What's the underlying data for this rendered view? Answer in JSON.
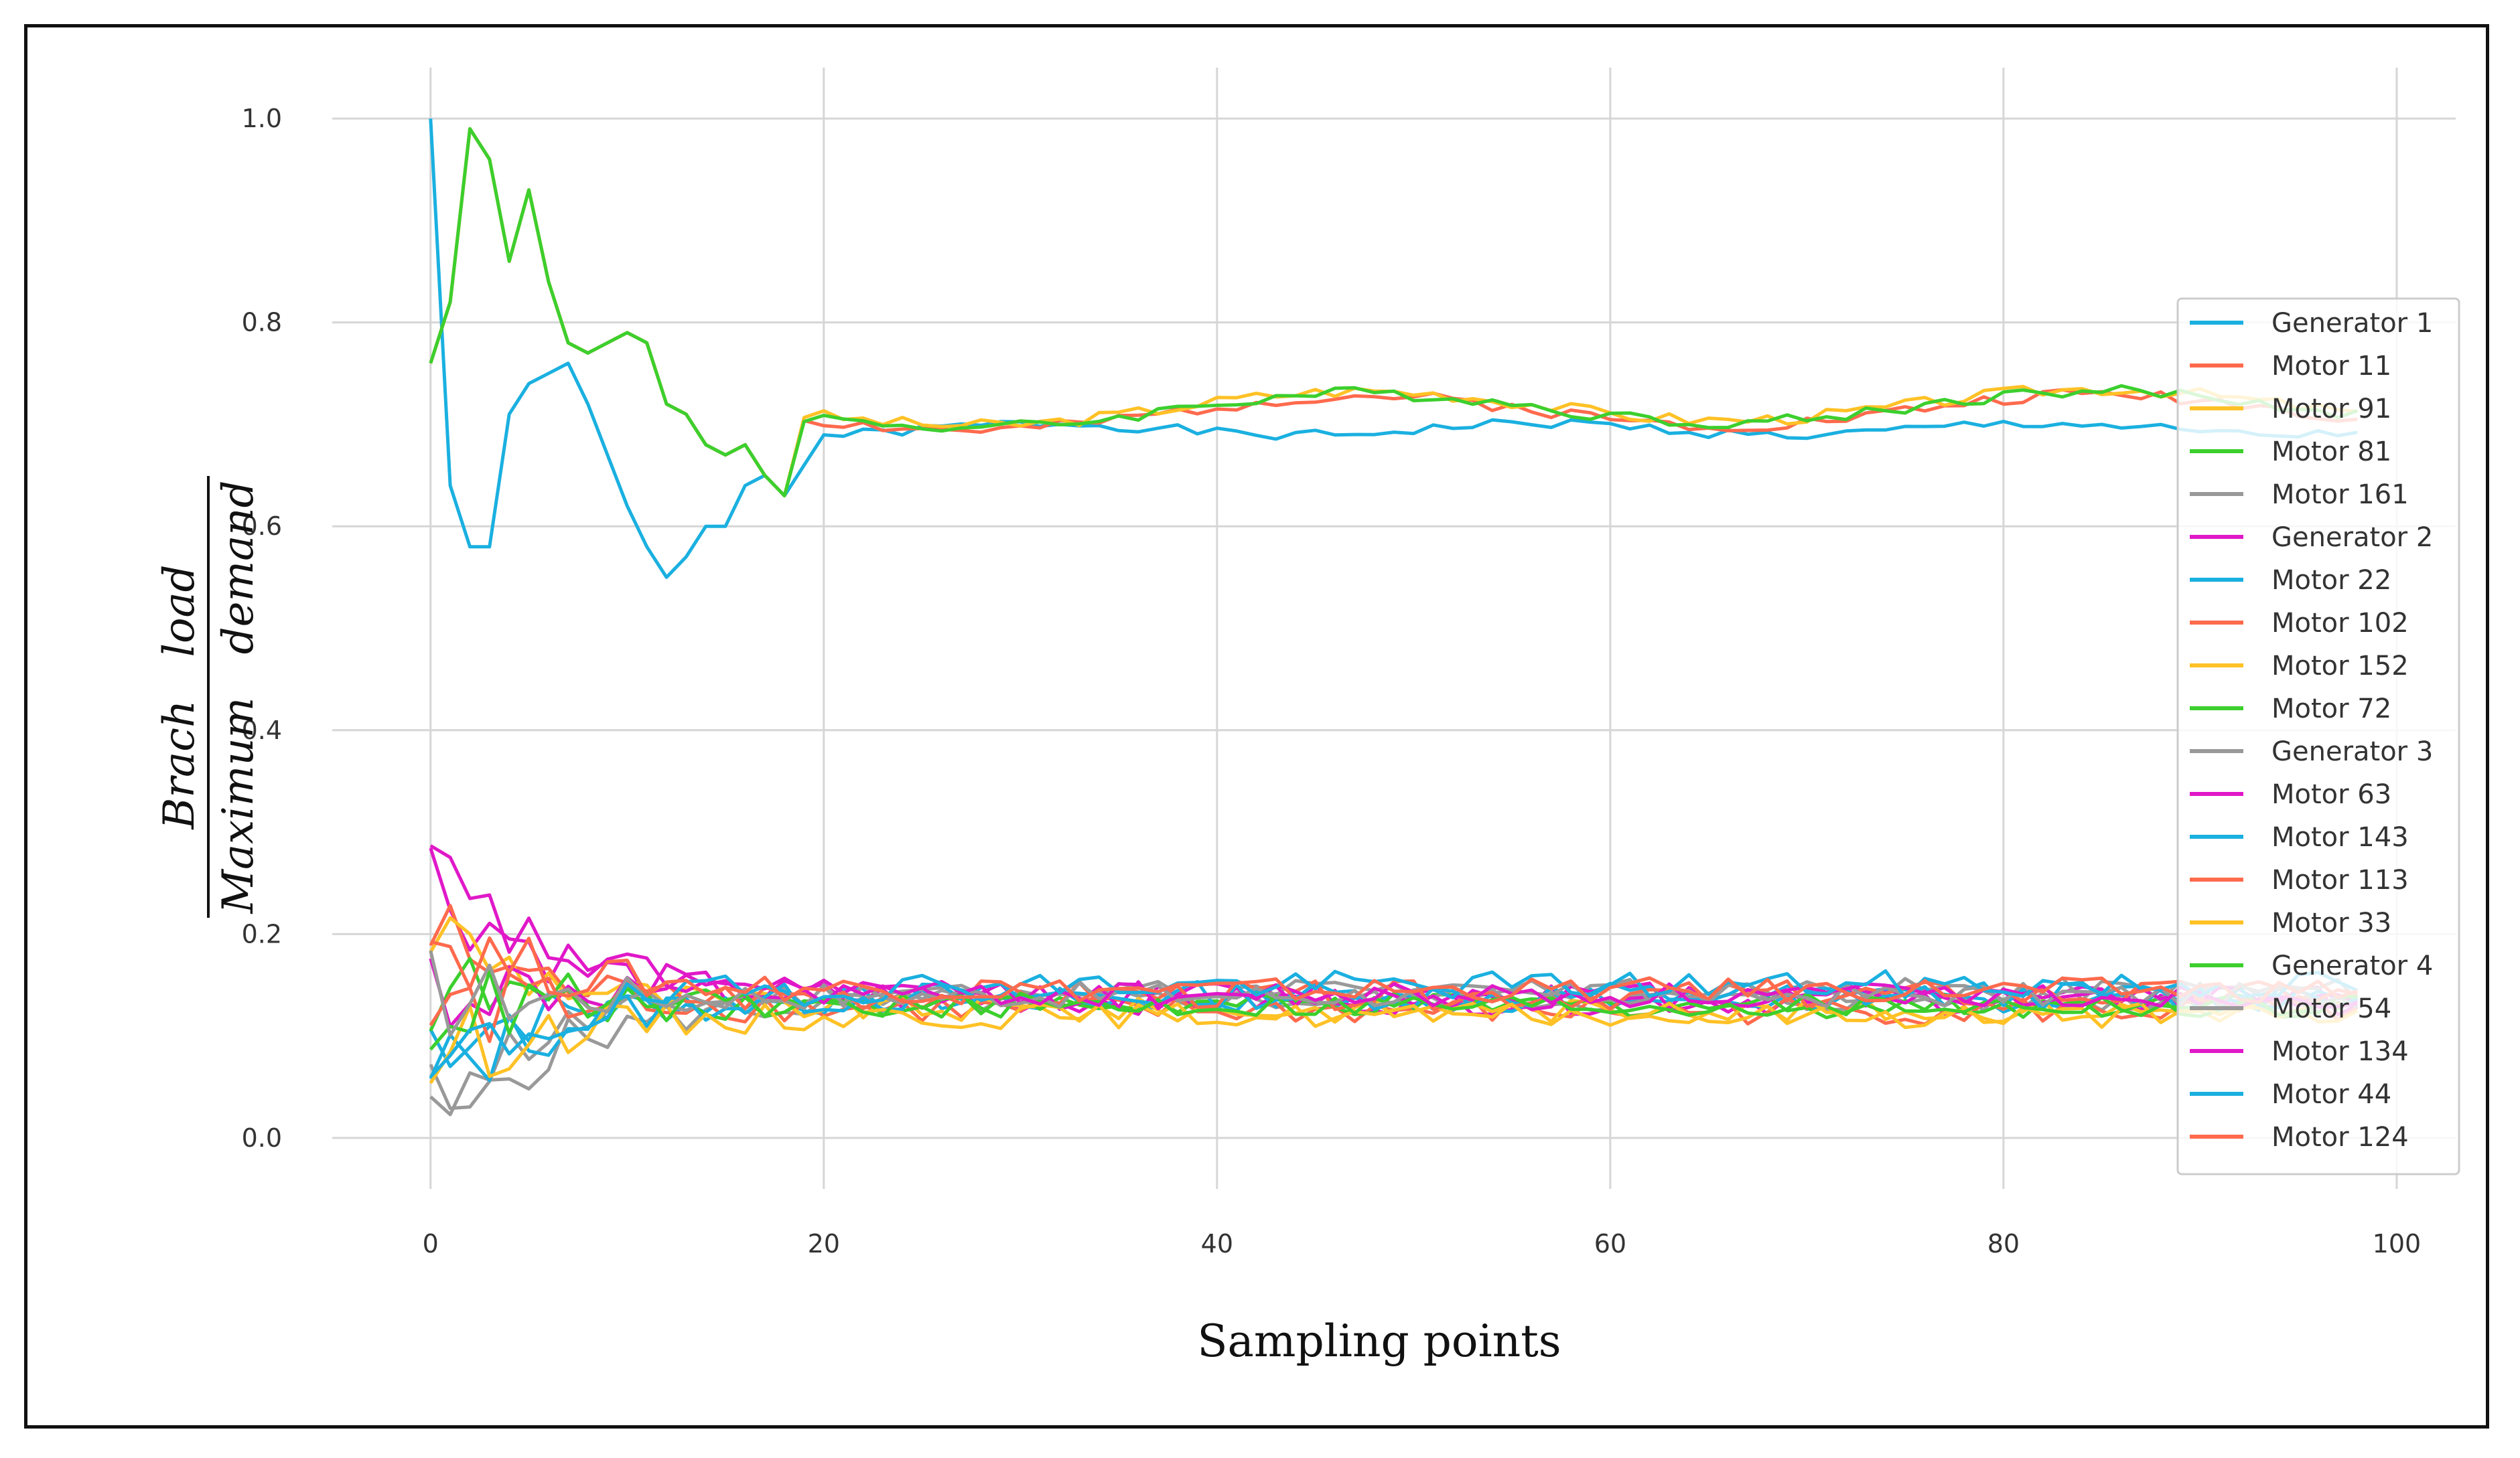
{
  "chart_data": {
    "type": "line",
    "title": "",
    "xlabel": "Sampling points",
    "ylabel": {
      "numerator": [
        "Brach",
        "load"
      ],
      "denominator": [
        "Maximum",
        "demand"
      ]
    },
    "xlim": [
      -5,
      103
    ],
    "ylim": [
      -0.05,
      1.05
    ],
    "xticks": [
      0,
      20,
      40,
      60,
      80,
      100
    ],
    "yticks": [
      0.0,
      0.2,
      0.4,
      0.6,
      0.8,
      1.0
    ],
    "xtick_labels": [
      "0",
      "20",
      "40",
      "60",
      "80",
      "100"
    ],
    "ytick_labels": [
      "0.0",
      "0.2",
      "0.4",
      "0.6",
      "0.8",
      "1.0"
    ],
    "grid": true,
    "legend_position": "right",
    "series": [
      {
        "name": "Generator 1",
        "color": "#1ab0e0",
        "start": 1.0,
        "dip": 0.55,
        "end": 0.695,
        "seed": 1,
        "amp": 0.01
      },
      {
        "name": "Motor 11",
        "color": "#ff6a4d",
        "start": 0.76,
        "peak": 0.99,
        "end": 0.715,
        "seed": 2,
        "amp": 0.012
      },
      {
        "name": "Motor 91",
        "color": "#ffc125",
        "start": 0.76,
        "peak": 0.99,
        "end": 0.72,
        "seed": 3,
        "amp": 0.012
      },
      {
        "name": "Motor 81",
        "color": "#3ccf2e",
        "start": 0.76,
        "peak": 0.99,
        "end": 0.718,
        "seed": 4,
        "amp": 0.012
      },
      {
        "name": "Motor 161",
        "color": "#999999",
        "start": 0.0,
        "end": 0.135,
        "seed": 5,
        "amp": 0.012
      },
      {
        "name": "Generator 2",
        "color": "#e018c8",
        "start": 0.26,
        "end": 0.135,
        "seed": 6,
        "amp": 0.014
      },
      {
        "name": "Motor 22",
        "color": "#1ab0e0",
        "start": 0.1,
        "end": 0.135,
        "seed": 7,
        "amp": 0.012
      },
      {
        "name": "Motor 102",
        "color": "#ff6a4d",
        "start": 0.2,
        "end": 0.125,
        "seed": 8,
        "amp": 0.014
      },
      {
        "name": "Motor 152",
        "color": "#ffc125",
        "start": 0.21,
        "end": 0.125,
        "seed": 9,
        "amp": 0.012
      },
      {
        "name": "Motor 72",
        "color": "#3ccf2e",
        "start": 0.15,
        "end": 0.13,
        "seed": 10,
        "amp": 0.012
      },
      {
        "name": "Generator 3",
        "color": "#999999",
        "start": 0.03,
        "end": 0.145,
        "seed": 11,
        "amp": 0.012
      },
      {
        "name": "Motor 63",
        "color": "#e018c8",
        "start": 0.15,
        "end": 0.14,
        "seed": 12,
        "amp": 0.014
      },
      {
        "name": "Motor 143",
        "color": "#1ab0e0",
        "start": 0.05,
        "end": 0.14,
        "seed": 13,
        "amp": 0.014
      },
      {
        "name": "Motor 113",
        "color": "#ff6a4d",
        "start": 0.12,
        "end": 0.14,
        "seed": 14,
        "amp": 0.014
      },
      {
        "name": "Motor 33",
        "color": "#ffc125",
        "start": 0.08,
        "end": 0.12,
        "seed": 15,
        "amp": 0.012
      },
      {
        "name": "Generator 4",
        "color": "#3ccf2e",
        "start": 0.13,
        "end": 0.13,
        "seed": 16,
        "amp": 0.012
      },
      {
        "name": "Motor 54",
        "color": "#999999",
        "start": 0.14,
        "end": 0.14,
        "seed": 17,
        "amp": 0.012
      },
      {
        "name": "Motor 134",
        "color": "#e018c8",
        "start": 0.26,
        "end": 0.14,
        "seed": 18,
        "amp": 0.012
      },
      {
        "name": "Motor 44",
        "color": "#1ab0e0",
        "start": 0.05,
        "end": 0.15,
        "seed": 19,
        "amp": 0.014
      },
      {
        "name": "Motor 124",
        "color": "#ff6a4d",
        "start": 0.2,
        "end": 0.145,
        "seed": 20,
        "amp": 0.012
      }
    ]
  }
}
